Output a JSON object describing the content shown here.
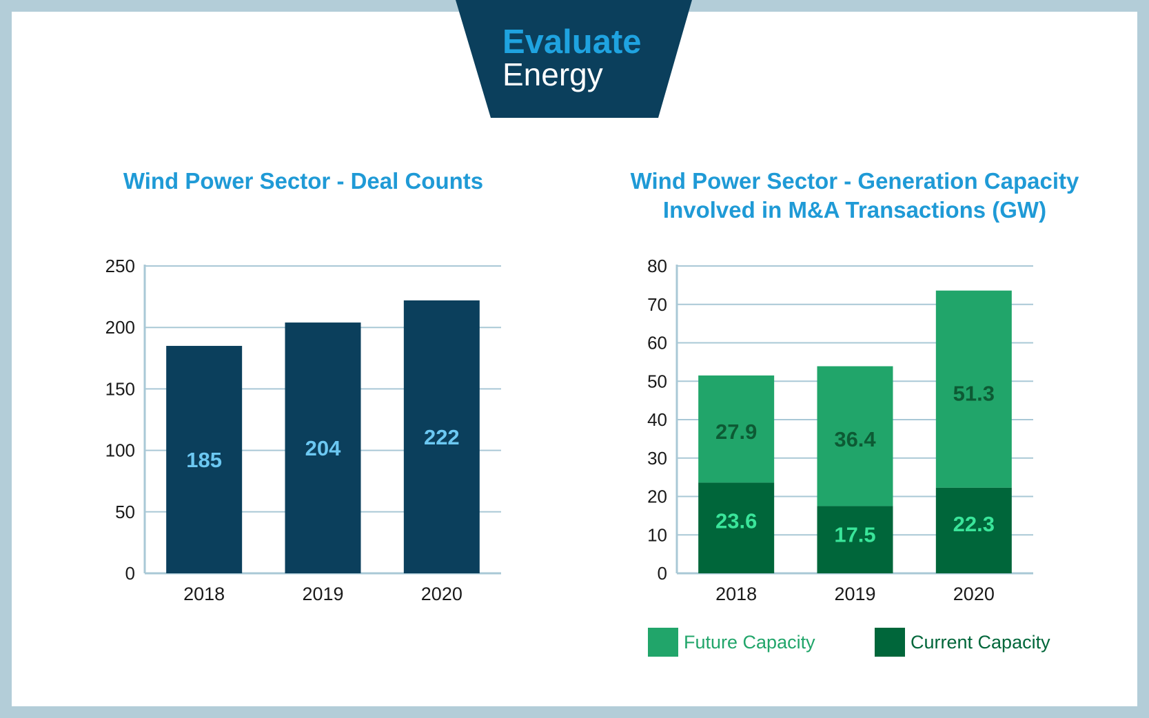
{
  "brand": {
    "line1": "Evaluate",
    "line2": "Energy",
    "colors": {
      "banner": "#0b3f5c",
      "line1": "#1fa3e0",
      "line2": "#ffffff"
    }
  },
  "colors": {
    "frame": "#b3cdd8",
    "navy_bar": "#0b3f5c",
    "deal_label": "#6cc8f2",
    "future": "#21a56a",
    "current": "#00663a",
    "future_label": "#0d5a34",
    "current_label": "#3ae59a",
    "grid": "#a9c8d6",
    "title": "#1f9ad6"
  },
  "chart_data": [
    {
      "type": "bar",
      "title": "Wind Power Sector - Deal Counts",
      "categories": [
        "2018",
        "2019",
        "2020"
      ],
      "series": [
        {
          "values": [
            185,
            204,
            222
          ]
        }
      ],
      "ylim": [
        0,
        250
      ],
      "yticks": [
        0,
        50,
        100,
        150,
        200,
        250
      ],
      "grid": true,
      "legend": "none"
    },
    {
      "type": "bar",
      "stacked": true,
      "title": "Wind Power Sector - Generation Capacity Involved in M&A Transactions (GW)",
      "title_lines": [
        "Wind Power Sector - Generation Capacity",
        "Involved in M&A Transactions (GW)"
      ],
      "categories": [
        "2018",
        "2019",
        "2020"
      ],
      "series": [
        {
          "name": "Current Capacity",
          "values": [
            23.6,
            17.5,
            22.3
          ]
        },
        {
          "name": "Future Capacity",
          "values": [
            27.9,
            36.4,
            51.3
          ]
        }
      ],
      "ylim": [
        0,
        80
      ],
      "yticks": [
        0,
        10,
        20,
        30,
        40,
        50,
        60,
        70,
        80
      ],
      "grid": true,
      "legend": "bottom",
      "legend_order": [
        "Future Capacity",
        "Current Capacity"
      ]
    }
  ]
}
